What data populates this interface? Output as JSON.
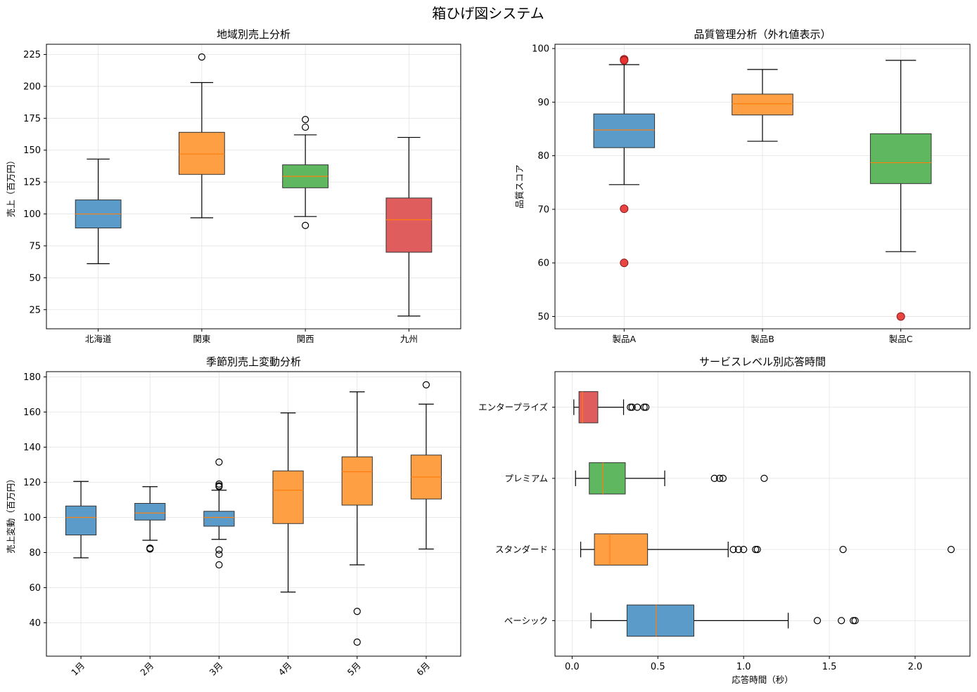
{
  "figure": {
    "title": "箱ひげ図システム"
  },
  "chart_data": [
    {
      "type": "box",
      "title": "地域別売上分析",
      "xlabel": "",
      "ylabel": "売上（百万円）",
      "orientation": "vertical",
      "categories": [
        "北海道",
        "関東",
        "関西",
        "九州"
      ],
      "ylim": [
        10,
        233
      ],
      "yticks": [
        25,
        50,
        75,
        100,
        125,
        150,
        175,
        200,
        225
      ],
      "grid": true,
      "boxes": [
        {
          "q1": 89,
          "median": 100,
          "q3": 111,
          "whislo": 61,
          "whishi": 143,
          "fliers": [],
          "color": "#5b9bc9"
        },
        {
          "q1": 131,
          "median": 147,
          "q3": 164,
          "whislo": 97,
          "whishi": 203,
          "fliers": [
            223
          ],
          "color": "#ff9f44"
        },
        {
          "q1": 120.5,
          "median": 129.5,
          "q3": 138.5,
          "whislo": 98,
          "whishi": 162,
          "fliers": [
            174,
            168,
            91
          ],
          "color": "#5fb75f"
        },
        {
          "q1": 70,
          "median": 95.5,
          "q3": 112.5,
          "whislo": 20,
          "whishi": 160,
          "fliers": [],
          "color": "#e05d5e"
        }
      ]
    },
    {
      "type": "box",
      "title": "品質管理分析（外れ値表示）",
      "xlabel": "",
      "ylabel": "品質スコア",
      "orientation": "vertical",
      "categories": [
        "製品A",
        "製品B",
        "製品C"
      ],
      "ylim": [
        47.7,
        100.8
      ],
      "yticks": [
        50,
        60,
        70,
        80,
        90,
        100
      ],
      "grid": true,
      "flier_style": "red-filled",
      "boxes": [
        {
          "q1": 81.5,
          "median": 84.8,
          "q3": 87.8,
          "whislo": 74.6,
          "whishi": 97.0,
          "fliers": [
            98.0,
            97.8,
            70.1,
            60.0
          ],
          "color": "#5b9bc9"
        },
        {
          "q1": 87.6,
          "median": 89.7,
          "q3": 91.5,
          "whislo": 82.7,
          "whishi": 96.1,
          "fliers": [],
          "color": "#ff9f44"
        },
        {
          "q1": 74.8,
          "median": 78.7,
          "q3": 84.1,
          "whislo": 62.1,
          "whishi": 97.8,
          "fliers": [
            50.0
          ],
          "color": "#5fb75f"
        }
      ]
    },
    {
      "type": "box",
      "title": "季節別売上変動分析",
      "xlabel": "",
      "ylabel": "売上変動（百万円）",
      "orientation": "vertical",
      "categories": [
        "1月",
        "2月",
        "3月",
        "4月",
        "5月",
        "6月"
      ],
      "ylim": [
        21,
        183
      ],
      "yticks": [
        40,
        60,
        80,
        100,
        120,
        140,
        160,
        180
      ],
      "grid": true,
      "xtick_rotation": 45,
      "boxes": [
        {
          "q1": 90,
          "median": 100,
          "q3": 106.5,
          "whislo": 77,
          "whishi": 120.5,
          "fliers": [],
          "color": "#5b9bc9"
        },
        {
          "q1": 98.5,
          "median": 102.5,
          "q3": 108,
          "whislo": 87,
          "whishi": 117.5,
          "fliers": [
            82.5,
            82
          ],
          "color": "#5b9bc9"
        },
        {
          "q1": 95,
          "median": 100,
          "q3": 103.5,
          "whislo": 87.5,
          "whishi": 115.5,
          "fliers": [
            131.5,
            119,
            118,
            117.5,
            81.5,
            79,
            73
          ],
          "color": "#5b9bc9"
        },
        {
          "q1": 96.5,
          "median": 115.5,
          "q3": 126.5,
          "whislo": 57.5,
          "whishi": 159.5,
          "fliers": [],
          "color": "#ff9f44"
        },
        {
          "q1": 107,
          "median": 126,
          "q3": 134.5,
          "whislo": 73,
          "whishi": 171.5,
          "fliers": [
            46.5,
            29
          ],
          "color": "#ff9f44"
        },
        {
          "q1": 110.5,
          "median": 123,
          "q3": 135.5,
          "whislo": 82,
          "whishi": 164.5,
          "fliers": [
            175.5
          ],
          "color": "#ff9f44"
        }
      ]
    },
    {
      "type": "box",
      "title": "サービスレベル別応答時間",
      "xlabel": "応答時間（秒）",
      "ylabel": "",
      "orientation": "horizontal",
      "categories": [
        "ベーシック",
        "スタンダード",
        "プレミアム",
        "エンタープライズ"
      ],
      "xlim": [
        -0.1,
        2.32
      ],
      "xticks": [
        0.0,
        0.5,
        1.0,
        1.5,
        2.0
      ],
      "xtick_labels": [
        "0.0",
        "0.5",
        "1.0",
        "1.5",
        "2.0"
      ],
      "grid": true,
      "boxes": [
        {
          "q1": 0.32,
          "median": 0.49,
          "q3": 0.71,
          "whislo": 0.11,
          "whishi": 1.26,
          "fliers": [
            1.43,
            1.57,
            1.64,
            1.65
          ],
          "color": "#5b9bc9"
        },
        {
          "q1": 0.13,
          "median": 0.22,
          "q3": 0.44,
          "whislo": 0.05,
          "whishi": 0.91,
          "fliers": [
            0.94,
            0.97,
            1.0,
            1.07,
            1.08,
            1.58,
            2.21
          ],
          "color": "#ff9f44"
        },
        {
          "q1": 0.1,
          "median": 0.18,
          "q3": 0.31,
          "whislo": 0.02,
          "whishi": 0.54,
          "fliers": [
            0.83,
            0.86,
            0.88,
            1.12
          ],
          "color": "#5fb75f"
        },
        {
          "q1": 0.04,
          "median": 0.06,
          "q3": 0.15,
          "whislo": 0.01,
          "whishi": 0.3,
          "fliers": [
            0.34,
            0.35,
            0.38,
            0.42,
            0.43
          ],
          "color": "#e05d5e"
        }
      ]
    }
  ]
}
